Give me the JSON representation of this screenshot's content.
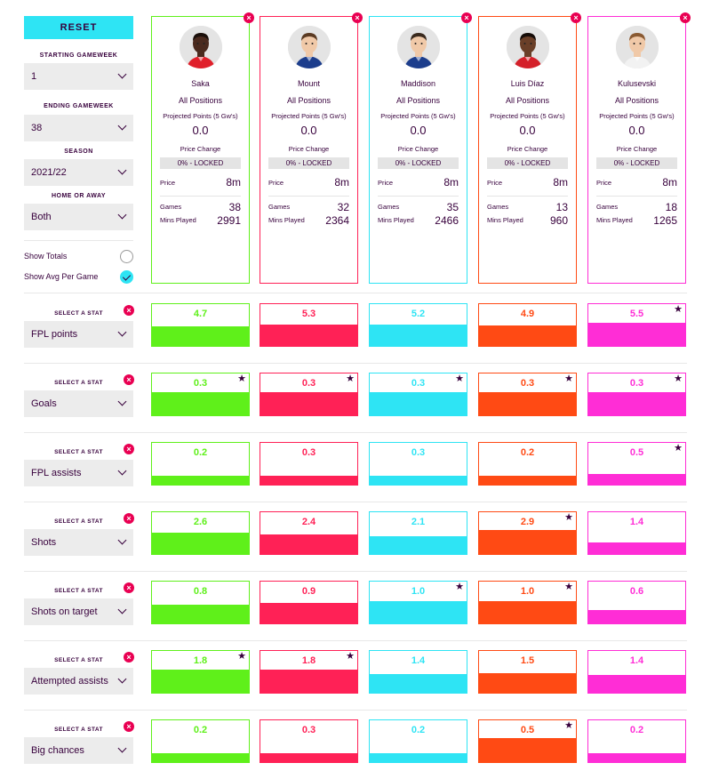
{
  "controls": {
    "reset_label": "RESET",
    "starting_gameweek_label": "STARTING GAMEWEEK",
    "starting_gameweek_value": "1",
    "ending_gameweek_label": "ENDING GAMEWEEK",
    "ending_gameweek_value": "38",
    "season_label": "SEASON",
    "season_value": "2021/22",
    "home_away_label": "HOME OR AWAY",
    "home_away_value": "Both",
    "show_totals_label": "Show Totals",
    "show_totals_checked": false,
    "show_avg_label": "Show Avg Per Game",
    "show_avg_checked": true,
    "close_glyph": "×"
  },
  "card_labels": {
    "position": "All Positions",
    "projected_label": "Projected Points (5 Gw's)",
    "price_change_label": "Price Change",
    "price_label": "Price",
    "games_label": "Games",
    "mins_label": "Mins Played"
  },
  "players": [
    {
      "name": "Saka",
      "color": "#5ff01a",
      "shirt": "#e0202b",
      "skin": "#4a2a1e",
      "hair": "#1a0f0a",
      "projected": "0.0",
      "lock": "0% - LOCKED",
      "price": "8m",
      "games": "38",
      "mins": "2991"
    },
    {
      "name": "Mount",
      "color": "#ff2156",
      "shirt": "#1c3d8c",
      "skin": "#f0c9a8",
      "hair": "#5a3a22",
      "projected": "0.0",
      "lock": "0% - LOCKED",
      "price": "8m",
      "games": "32",
      "mins": "2364"
    },
    {
      "name": "Maddison",
      "color": "#2ee4f4",
      "shirt": "#1c3d8c",
      "skin": "#f0c9a8",
      "hair": "#3a2a1e",
      "projected": "0.0",
      "lock": "0% - LOCKED",
      "price": "8m",
      "games": "35",
      "mins": "2466"
    },
    {
      "name": "Luis Díaz",
      "color": "#ff4a14",
      "shirt": "#d4202a",
      "skin": "#6a3f28",
      "hair": "#150c08",
      "projected": "0.0",
      "lock": "0% - LOCKED",
      "price": "8m",
      "games": "13",
      "mins": "960"
    },
    {
      "name": "Kulusevski",
      "color": "#ff2dd6",
      "shirt": "#f2f2f2",
      "skin": "#f0c9a8",
      "hair": "#8a5a32",
      "projected": "0.0",
      "lock": "0% - LOCKED",
      "price": "8m",
      "games": "18",
      "mins": "1265"
    }
  ],
  "select_a_stat_label": "SELECT A STAT",
  "star_glyph": "★",
  "stat_rows": [
    {
      "stat": "FPL points",
      "values": [
        "4.7",
        "5.3",
        "5.2",
        "4.9",
        "5.5"
      ],
      "fill_fraction": [
        0.47,
        0.53,
        0.53,
        0.5,
        0.57
      ],
      "star": [
        false,
        false,
        false,
        false,
        true
      ]
    },
    {
      "stat": "Goals",
      "values": [
        "0.3",
        "0.3",
        "0.3",
        "0.3",
        "0.3"
      ],
      "fill_fraction": [
        0.57,
        0.57,
        0.57,
        0.57,
        0.57
      ],
      "star": [
        true,
        true,
        true,
        true,
        true
      ]
    },
    {
      "stat": "FPL assists",
      "values": [
        "0.2",
        "0.3",
        "0.3",
        "0.2",
        "0.5"
      ],
      "fill_fraction": [
        0.22,
        0.22,
        0.22,
        0.22,
        0.26
      ],
      "star": [
        false,
        false,
        false,
        false,
        true
      ]
    },
    {
      "stat": "Shots",
      "values": [
        "2.6",
        "2.4",
        "2.1",
        "2.9",
        "1.4"
      ],
      "fill_fraction": [
        0.53,
        0.47,
        0.43,
        0.59,
        0.29
      ],
      "star": [
        false,
        false,
        false,
        true,
        false
      ]
    },
    {
      "stat": "Shots on target",
      "values": [
        "0.8",
        "0.9",
        "1.0",
        "1.0",
        "0.6"
      ],
      "fill_fraction": [
        0.45,
        0.49,
        0.55,
        0.55,
        0.33
      ],
      "star": [
        false,
        false,
        true,
        true,
        false
      ]
    },
    {
      "stat": "Attempted assists",
      "values": [
        "1.8",
        "1.8",
        "1.4",
        "1.5",
        "1.4"
      ],
      "fill_fraction": [
        0.57,
        0.57,
        0.45,
        0.47,
        0.43
      ],
      "star": [
        true,
        true,
        false,
        false,
        false
      ]
    },
    {
      "stat": "Big chances",
      "values": [
        "0.2",
        "0.3",
        "0.2",
        "0.5",
        "0.2"
      ],
      "fill_fraction": [
        0.22,
        0.22,
        0.22,
        0.59,
        0.22
      ],
      "star": [
        false,
        false,
        false,
        true,
        false
      ]
    }
  ]
}
